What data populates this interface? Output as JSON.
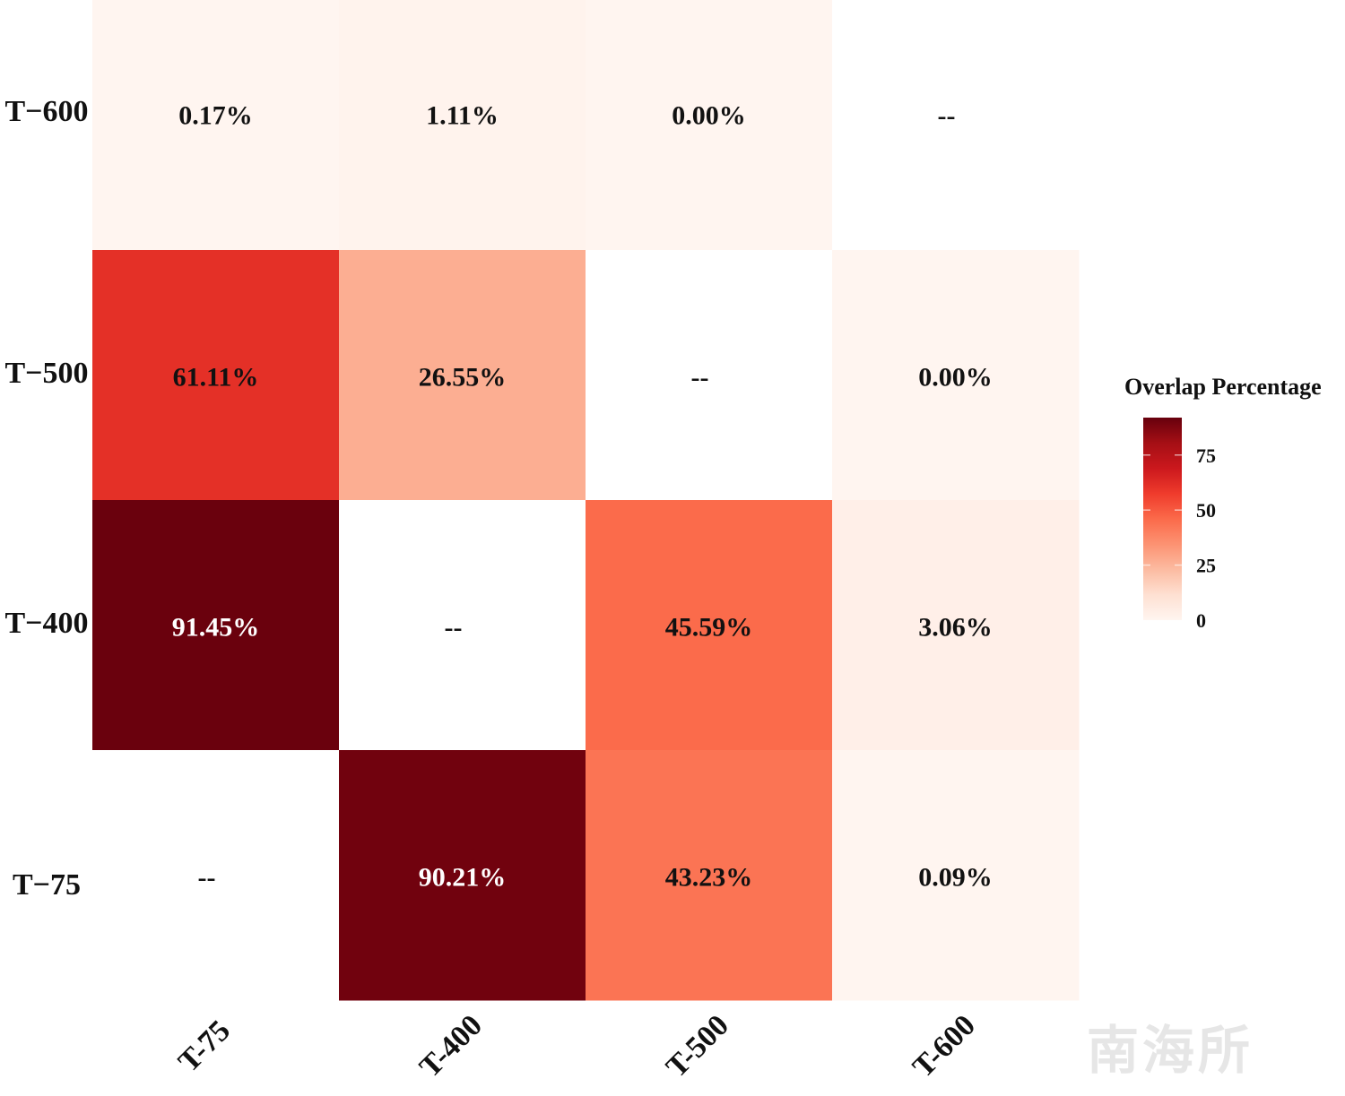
{
  "chart_data": {
    "type": "heatmap",
    "x_categories": [
      "T-75",
      "T-400",
      "T-500",
      "T-600"
    ],
    "y_categories": [
      "T-600",
      "T-500",
      "T-400",
      "T-75"
    ],
    "values": [
      [
        0.17,
        1.11,
        0.0,
        null
      ],
      [
        61.11,
        26.55,
        null,
        0.0
      ],
      [
        91.45,
        null,
        45.59,
        3.06
      ],
      [
        null,
        90.21,
        43.23,
        0.09
      ]
    ],
    "labels": [
      [
        "0.17%",
        "1.11%",
        "0.00%",
        "--"
      ],
      [
        "61.11%",
        "26.55%",
        "--",
        "0.00%"
      ],
      [
        "91.45%",
        "--",
        "45.59%",
        "3.06%"
      ],
      [
        "--",
        "90.21%",
        "43.23%",
        "0.09%"
      ]
    ],
    "legend": {
      "title": "Overlap Percentage",
      "ticks": [
        0,
        25,
        50,
        75
      ],
      "range": [
        0,
        92
      ],
      "placement": "right"
    },
    "color_scale": [
      "#fff5f0",
      "#fee0d2",
      "#fcbba1",
      "#fc9272",
      "#fb6a4a",
      "#ef3b2c",
      "#cb181d",
      "#a50f15",
      "#67000d"
    ],
    "na_color": "#ffffff",
    "xlabel": "",
    "ylabel": "",
    "title": ""
  },
  "watermark": "南海所"
}
